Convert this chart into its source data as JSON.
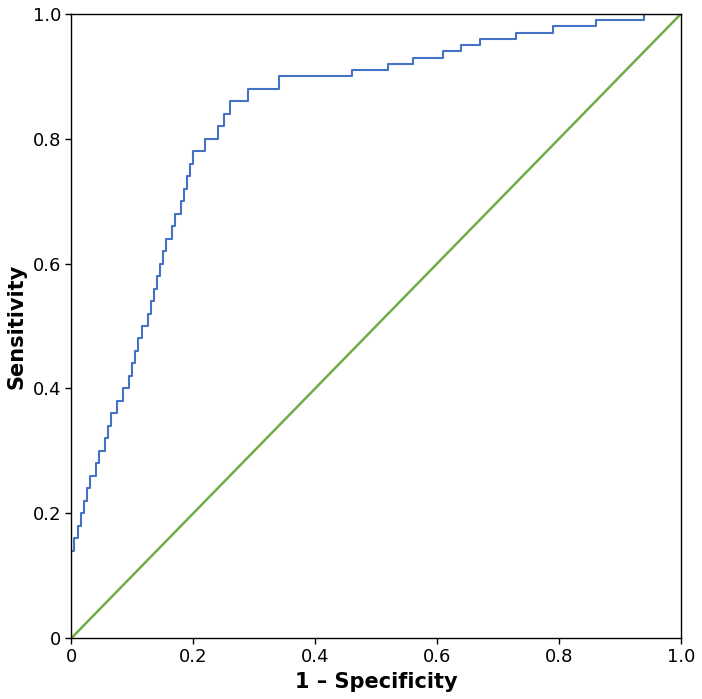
{
  "roc_curve_color": "#4472C4",
  "diagonal_color": "#70AD47",
  "roc_linewidth": 1.5,
  "diagonal_linewidth": 1.8,
  "xlabel": "1 – Specificity",
  "ylabel": "Sensitivity",
  "xlim": [
    0,
    1.0
  ],
  "ylim": [
    0,
    1.0
  ],
  "xticks": [
    0,
    0.2,
    0.4,
    0.6,
    0.8,
    1.0
  ],
  "yticks": [
    0,
    0.2,
    0.4,
    0.6,
    0.8,
    1.0
  ],
  "tick_fontsize": 13,
  "label_fontsize": 15,
  "background_color": "#ffffff",
  "figsize": [
    7.02,
    6.99
  ],
  "dpi": 100,
  "fpr": [
    0.0,
    0.0,
    0.005,
    0.005,
    0.01,
    0.01,
    0.015,
    0.015,
    0.02,
    0.02,
    0.025,
    0.025,
    0.03,
    0.03,
    0.035,
    0.04,
    0.04,
    0.045,
    0.045,
    0.05,
    0.055,
    0.06,
    0.06,
    0.065,
    0.065,
    0.07,
    0.075,
    0.08,
    0.085,
    0.085,
    0.09,
    0.095,
    0.1,
    0.105,
    0.11,
    0.115,
    0.12,
    0.125,
    0.13,
    0.135,
    0.14,
    0.145,
    0.15,
    0.155,
    0.16,
    0.165,
    0.17,
    0.175,
    0.18,
    0.185,
    0.19,
    0.195,
    0.2,
    0.21,
    0.22,
    0.23,
    0.24,
    0.25,
    0.26,
    0.27,
    0.28,
    0.29,
    0.3,
    0.31,
    0.32,
    0.33,
    0.34,
    0.35,
    0.36,
    0.38,
    0.4,
    0.42,
    0.44,
    0.46,
    0.48,
    0.5,
    0.52,
    0.54,
    0.56,
    0.58,
    0.61,
    0.64,
    0.67,
    0.7,
    0.73,
    0.76,
    0.79,
    0.82,
    0.86,
    0.9,
    0.94,
    0.97,
    1.0
  ],
  "tpr": [
    0.0,
    0.14,
    0.14,
    0.16,
    0.16,
    0.18,
    0.18,
    0.2,
    0.2,
    0.22,
    0.22,
    0.24,
    0.24,
    0.26,
    0.26,
    0.26,
    0.28,
    0.28,
    0.3,
    0.3,
    0.32,
    0.32,
    0.34,
    0.34,
    0.36,
    0.36,
    0.38,
    0.38,
    0.38,
    0.4,
    0.4,
    0.42,
    0.44,
    0.46,
    0.48,
    0.5,
    0.5,
    0.52,
    0.54,
    0.56,
    0.58,
    0.6,
    0.62,
    0.64,
    0.64,
    0.66,
    0.68,
    0.68,
    0.7,
    0.72,
    0.74,
    0.76,
    0.78,
    0.78,
    0.8,
    0.8,
    0.82,
    0.84,
    0.86,
    0.86,
    0.86,
    0.88,
    0.88,
    0.88,
    0.88,
    0.88,
    0.9,
    0.9,
    0.9,
    0.9,
    0.9,
    0.9,
    0.9,
    0.91,
    0.91,
    0.91,
    0.92,
    0.92,
    0.93,
    0.93,
    0.94,
    0.95,
    0.96,
    0.96,
    0.97,
    0.97,
    0.98,
    0.98,
    0.99,
    0.99,
    1.0,
    1.0,
    1.0
  ]
}
